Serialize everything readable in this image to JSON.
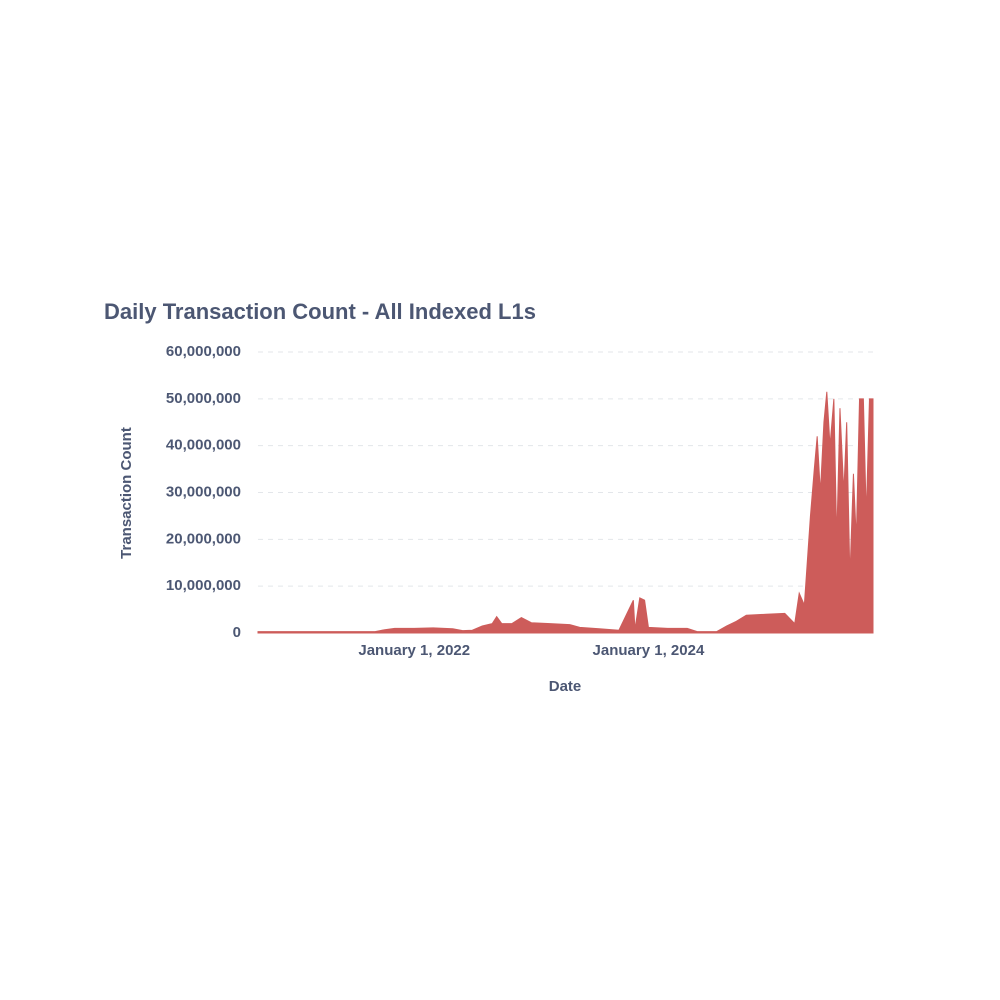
{
  "chart_data": {
    "type": "area",
    "title": "Daily Transaction Count - All Indexed L1s",
    "x_label": "Date",
    "y_label": "Transaction Count",
    "color": "#cd5c5a",
    "grid": true,
    "x": [
      "2020-09-01",
      "2020-11-01",
      "2021-01-01",
      "2021-03-01",
      "2021-05-01",
      "2021-07-01",
      "2021-09-01",
      "2021-10-01",
      "2021-11-01",
      "2022-01-01",
      "2022-03-01",
      "2022-05-01",
      "2022-06-01",
      "2022-07-01",
      "2022-08-01",
      "2022-09-01",
      "2022-09-15",
      "2022-10-01",
      "2022-11-01",
      "2022-12-01",
      "2023-01-01",
      "2023-03-01",
      "2023-05-01",
      "2023-06-01",
      "2023-08-01",
      "2023-10-01",
      "2023-11-15",
      "2023-11-20",
      "2023-12-05",
      "2023-12-20",
      "2024-01-01",
      "2024-03-01",
      "2024-05-01",
      "2024-06-01",
      "2024-08-01",
      "2024-09-01",
      "2024-10-01",
      "2024-11-01",
      "2025-01-01",
      "2025-03-01",
      "2025-04-01",
      "2025-04-15",
      "2025-05-01",
      "2025-05-10",
      "2025-05-20",
      "2025-06-01",
      "2025-06-10",
      "2025-06-20",
      "2025-07-01",
      "2025-07-10",
      "2025-07-20",
      "2025-08-01",
      "2025-08-10",
      "2025-08-20",
      "2025-09-01",
      "2025-09-10",
      "2025-09-20",
      "2025-10-01",
      "2025-10-10",
      "2025-10-20",
      "2025-11-01",
      "2025-11-10",
      "2025-11-20",
      "2025-12-01"
    ],
    "values": [
      300000,
      300000,
      300000,
      300000,
      300000,
      300000,
      300000,
      700000,
      1000000,
      1000000,
      1100000,
      900000,
      500000,
      600000,
      1500000,
      2000000,
      3500000,
      2000000,
      2000000,
      3300000,
      2200000,
      2000000,
      1800000,
      1200000,
      900000,
      600000,
      7000000,
      800000,
      7500000,
      7000000,
      1200000,
      1000000,
      1000000,
      300000,
      300000,
      1500000,
      2500000,
      3800000,
      4000000,
      4200000,
      2000000,
      8500000,
      6000000,
      15000000,
      25000000,
      35000000,
      42000000,
      30000000,
      45000000,
      51500000,
      40000000,
      50000000,
      20000000,
      48000000,
      30000000,
      45000000,
      12000000,
      34000000,
      20000000,
      50000000,
      50000000,
      25000000,
      50000000,
      50000000
    ],
    "xlim": [
      "2020-09-01",
      "2025-12-01"
    ],
    "xticks": [
      {
        "value": "2022-01-01",
        "label": "January 1, 2022"
      },
      {
        "value": "2024-01-01",
        "label": "January 1, 2024"
      }
    ],
    "ylim": [
      0,
      60000000
    ],
    "yticks": [
      0,
      {
        "value": 10000000,
        "label": "10,000,000"
      },
      {
        "value": 20000000,
        "label": "20,000,000"
      },
      {
        "value": 30000000,
        "label": "30,000,000"
      },
      {
        "value": 40000000,
        "label": "40,000,000"
      },
      {
        "value": 50000000,
        "label": "50,000,000"
      },
      {
        "value": 60000000,
        "label": "60,000,000"
      }
    ]
  }
}
